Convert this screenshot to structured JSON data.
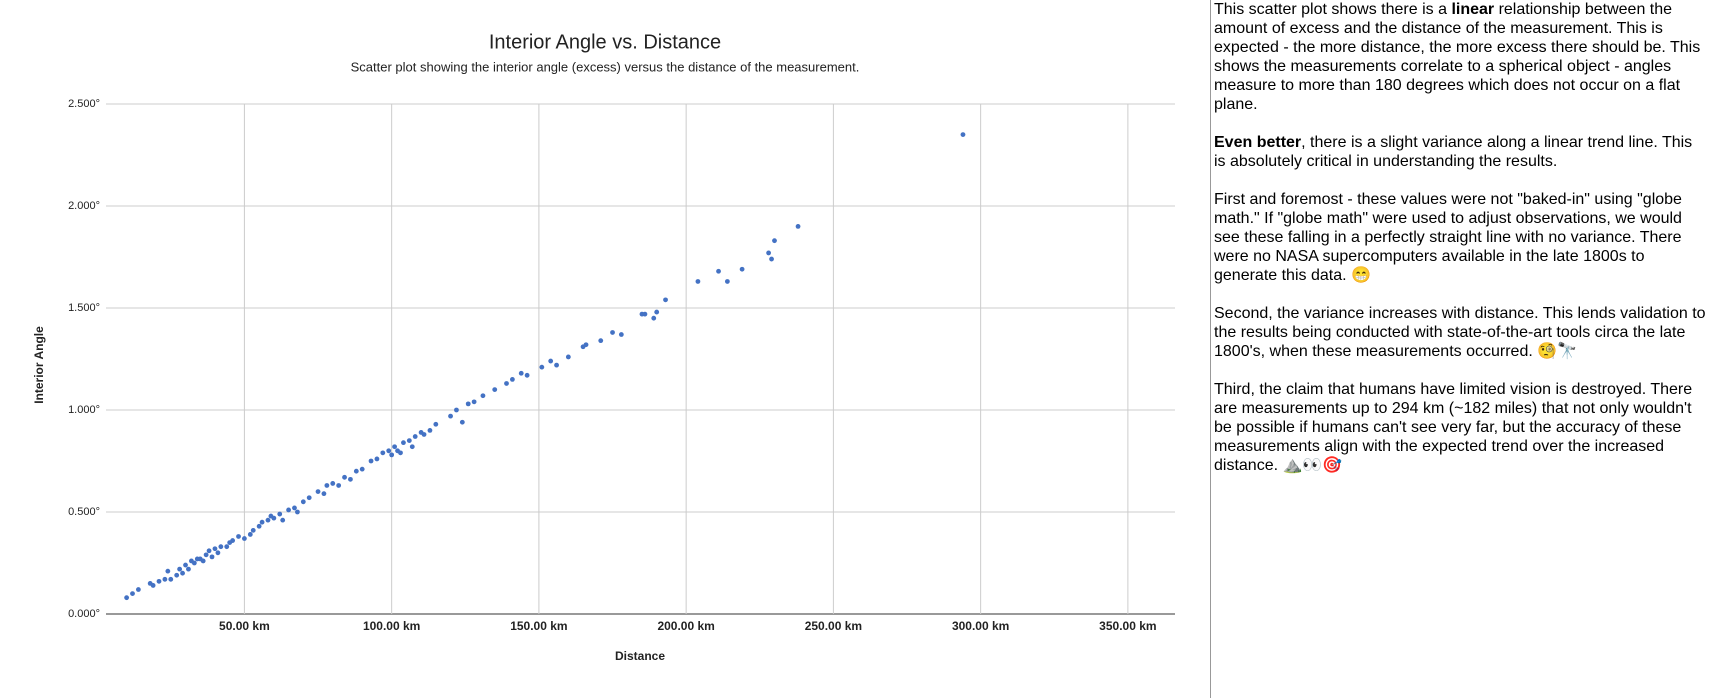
{
  "chart_data": {
    "type": "scatter",
    "title": "Interior Angle vs. Distance",
    "subtitle": "Scatter plot showing the interior angle (excess) versus the distance of the measurement.",
    "x_label": "Distance",
    "y_label": "Interior Angle",
    "color": "#4472c4",
    "grid": true,
    "xlim": [
      3,
      366
    ],
    "xticks": [
      {
        "value": 50,
        "label": "50.00 km"
      },
      {
        "value": 100,
        "label": "100.00 km"
      },
      {
        "value": 150,
        "label": "150.00 km"
      },
      {
        "value": 200,
        "label": "200.00 km"
      },
      {
        "value": 250,
        "label": "250.00 km"
      },
      {
        "value": 300,
        "label": "300.00 km"
      },
      {
        "value": 350,
        "label": "350.00 km"
      }
    ],
    "ylim": [
      0,
      2.5
    ],
    "yticks": [
      {
        "value": 0,
        "label": "0.000°"
      },
      {
        "value": 0.5,
        "label": "0.500°"
      },
      {
        "value": 1,
        "label": "1.000°"
      },
      {
        "value": 1.5,
        "label": "1.500°"
      },
      {
        "value": 2,
        "label": "2.000°"
      },
      {
        "value": 2.5,
        "label": "2.500°"
      }
    ],
    "x": [
      10,
      12,
      14,
      18,
      19,
      21,
      23,
      25,
      24,
      27,
      28,
      29,
      30,
      31,
      32,
      33,
      34,
      35,
      36,
      37,
      38,
      39,
      40,
      41,
      42,
      44,
      45,
      46,
      48,
      50,
      52,
      53,
      55,
      56,
      58,
      59,
      60,
      62,
      63,
      65,
      67,
      68,
      70,
      72,
      75,
      77,
      78,
      80,
      82,
      84,
      86,
      88,
      90,
      93,
      95,
      97,
      99,
      100,
      101,
      102,
      103,
      104,
      106,
      107,
      108,
      110,
      111,
      113,
      115,
      120,
      122,
      124,
      126,
      128,
      131,
      135,
      139,
      141,
      144,
      146,
      151,
      154,
      156,
      160,
      165,
      166,
      171,
      175,
      178,
      185,
      186,
      189,
      190,
      193,
      204,
      211,
      214,
      219,
      228,
      229,
      230,
      238,
      294
    ],
    "values": [
      0.08,
      0.1,
      0.12,
      0.15,
      0.14,
      0.16,
      0.17,
      0.17,
      0.21,
      0.19,
      0.22,
      0.2,
      0.24,
      0.22,
      0.26,
      0.25,
      0.27,
      0.27,
      0.26,
      0.29,
      0.31,
      0.28,
      0.32,
      0.3,
      0.33,
      0.33,
      0.35,
      0.36,
      0.38,
      0.37,
      0.39,
      0.41,
      0.43,
      0.45,
      0.46,
      0.48,
      0.47,
      0.49,
      0.46,
      0.51,
      0.52,
      0.5,
      0.55,
      0.57,
      0.6,
      0.59,
      0.63,
      0.64,
      0.63,
      0.67,
      0.66,
      0.7,
      0.71,
      0.75,
      0.76,
      0.79,
      0.8,
      0.78,
      0.82,
      0.8,
      0.79,
      0.84,
      0.85,
      0.82,
      0.87,
      0.89,
      0.88,
      0.9,
      0.93,
      0.97,
      1.0,
      0.94,
      1.03,
      1.04,
      1.07,
      1.1,
      1.13,
      1.15,
      1.18,
      1.17,
      1.21,
      1.24,
      1.22,
      1.26,
      1.31,
      1.32,
      1.34,
      1.38,
      1.37,
      1.47,
      1.47,
      1.45,
      1.48,
      1.54,
      1.63,
      1.68,
      1.63,
      1.69,
      1.77,
      1.74,
      1.83,
      1.9,
      2.35
    ]
  },
  "panel": {
    "paragraphs": [
      [
        {
          "text": "This scatter plot shows there is a "
        },
        {
          "text": "linear",
          "bold": true
        },
        {
          "text": " relationship between the amount of excess and the distance of the measurement. This is expected - the more distance, the more excess there should be.  This shows the measurements correlate to a spherical object - angles measure to more than 180 degrees which does not occur on a flat plane."
        }
      ],
      [
        {
          "text": "Even better",
          "bold": true
        },
        {
          "text": ", there is a slight variance along a linear trend line. This is absolutely critical in understanding the results."
        }
      ],
      [
        {
          "text": "First and foremost - these values were not \"baked-in\" using \"globe math.\" If \"globe math\" were used to adjust observations, we would see these falling in a perfectly straight line with no variance. There were no NASA supercomputers available in the late 1800s to generate this data. 😁"
        }
      ],
      [
        {
          "text": "Second, the variance increases with distance. This lends validation to the results being conducted with state-of-the-art tools circa the late 1800's, when these measurements occurred. 🧐🔭"
        }
      ],
      [
        {
          "text": "Third, the claim that humans have limited vision is destroyed. There are measurements up to 294 km (~182 miles) that not only wouldn't be possible if humans can't see very far, but the accuracy of these measurements align with the expected trend over the increased distance. ⛰️👀🎯"
        }
      ]
    ]
  }
}
